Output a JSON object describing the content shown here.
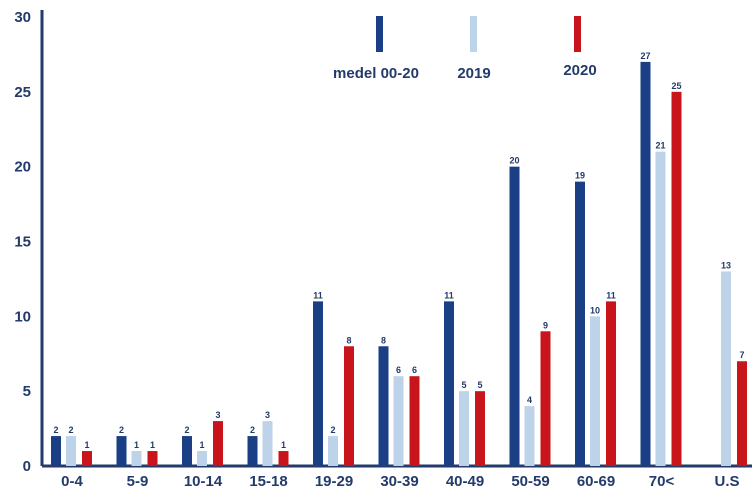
{
  "chart_data": {
    "type": "bar",
    "categories": [
      "0-4",
      "5-9",
      "10-14",
      "15-18",
      "19-29",
      "30-39",
      "40-49",
      "50-59",
      "60-69",
      "70<",
      "U.S"
    ],
    "series": [
      {
        "name": "medel 00-20",
        "color": "#1a3f85",
        "values": [
          2,
          2,
          2,
          2,
          11,
          8,
          11,
          20,
          19,
          27,
          0
        ]
      },
      {
        "name": "2019",
        "color": "#bcd3ea",
        "values": [
          2,
          1,
          1,
          3,
          2,
          6,
          5,
          4,
          10,
          21,
          13
        ]
      },
      {
        "name": "2020",
        "color": "#c8151b",
        "values": [
          1,
          1,
          3,
          1,
          8,
          6,
          5,
          9,
          11,
          25,
          7
        ]
      }
    ],
    "value_labels": [
      [
        "2",
        "2",
        "2",
        "2",
        "11",
        "8",
        "11",
        "20",
        "19",
        "27",
        ""
      ],
      [
        "2",
        "1",
        "1",
        "3",
        "2",
        "6",
        "5",
        "4",
        "10",
        "21",
        "13"
      ],
      [
        "1",
        "1",
        "3",
        "1",
        "8",
        "6",
        "5",
        "9",
        "11",
        "25",
        "7"
      ]
    ],
    "yticks": [
      0,
      5,
      10,
      15,
      20,
      25,
      30
    ],
    "ylim": [
      0,
      30
    ],
    "grid": false,
    "legend": "top-center",
    "title": "",
    "xlabel": "",
    "ylabel": ""
  }
}
